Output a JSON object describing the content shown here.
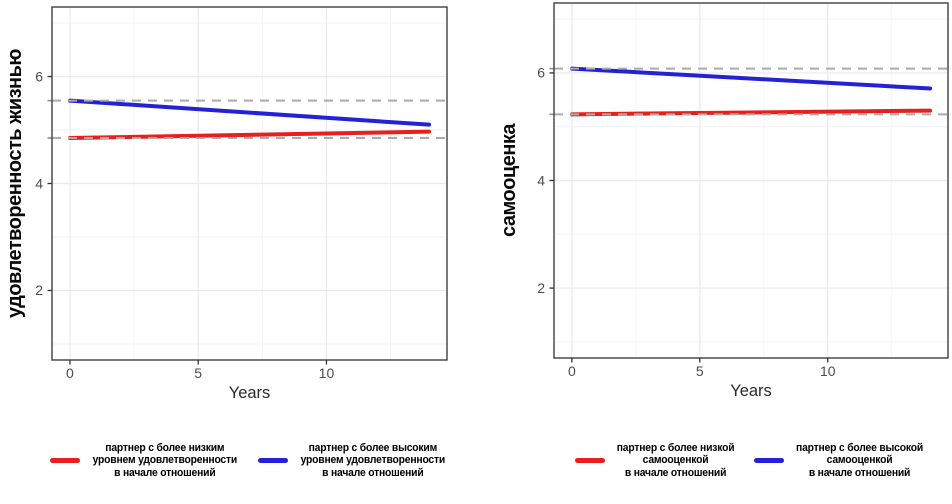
{
  "chart_data": {
    "type": "line",
    "x_axis_unit": "Years",
    "legend_position": "bottom",
    "style": {
      "red": "#e81f1d",
      "blue": "#2421d8",
      "reference_dash_color": "#ababab",
      "grid_major_color": "#ece7f1",
      "grid_minor_color": "#f5f2f8",
      "panel_border_color": "#3f3f3f",
      "tick_color": "#333333",
      "tick_label_color": "#4d4d4d",
      "axis_title_color": "#2b2b2b"
    },
    "figures": [
      {
        "ylabel": "удовлетворенность жизнью",
        "xlabel": "Years",
        "xlim": [
          -0.7,
          14.7
        ],
        "ylim": [
          0.7,
          7.3
        ],
        "x_ticks": [
          0,
          5,
          10
        ],
        "y_ticks": [
          2,
          4,
          6
        ],
        "x_minor_gridlines": [
          2.5,
          7.5,
          12.5
        ],
        "y_minor_gridlines": [
          1,
          3,
          5,
          7
        ],
        "series": [
          {
            "id": "lower-satisfaction-partner",
            "name": "партнер с более низким уровнем удовлетворенности в начале отношений",
            "legend_lines": [
              "партнер с более низким",
              "уровнем удовлетворенности",
              "в начале отношений"
            ],
            "color": "#e81f1d",
            "x": [
              0,
              14
            ],
            "y": [
              4.85,
              4.97
            ],
            "baseline_ref": 4.85
          },
          {
            "id": "higher-satisfaction-partner",
            "name": "партнер с более высоким уровнем удовлетворенности в начале отношений",
            "legend_lines": [
              "партнер с более высоким",
              "уровнем удовлетворенности",
              "в начале отношений"
            ],
            "color": "#2421d8",
            "x": [
              0,
              14
            ],
            "y": [
              5.55,
              5.1
            ],
            "baseline_ref": 5.55
          }
        ]
      },
      {
        "ylabel": "самооценка",
        "xlabel": "Years",
        "xlim": [
          -0.7,
          14.7
        ],
        "ylim": [
          0.7,
          7.3
        ],
        "x_ticks": [
          0,
          5,
          10
        ],
        "y_ticks": [
          2,
          4,
          6
        ],
        "x_minor_gridlines": [
          2.5,
          7.5,
          12.5
        ],
        "y_minor_gridlines": [
          1,
          3,
          5,
          7
        ],
        "series": [
          {
            "id": "lower-self-esteem-partner",
            "name": "партнер с более низкой самооценкой в начале отношений",
            "legend_lines": [
              "партнер с более низкой",
              "самооценкой",
              "в начале отношений"
            ],
            "color": "#e81f1d",
            "x": [
              0,
              14
            ],
            "y": [
              5.23,
              5.3
            ],
            "baseline_ref": 5.23
          },
          {
            "id": "higher-self-esteem-partner",
            "name": "партнер с более высокой самооценкой в начале отношений",
            "legend_lines": [
              "партнер с более высокой",
              "самооценкой",
              "в начале отношений"
            ],
            "color": "#2421d8",
            "x": [
              0,
              14
            ],
            "y": [
              6.08,
              5.71
            ],
            "baseline_ref": 6.08
          }
        ]
      }
    ]
  }
}
